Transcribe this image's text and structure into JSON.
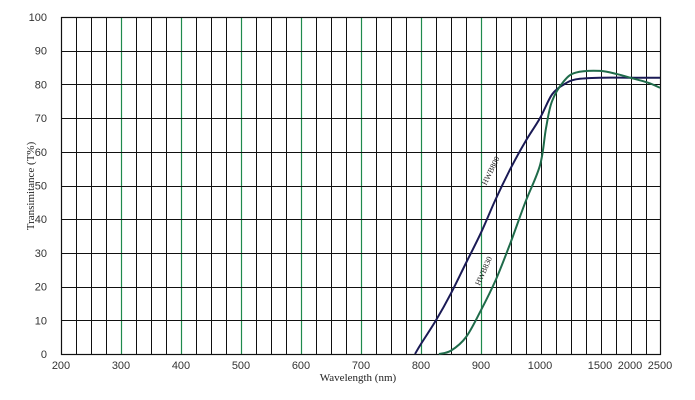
{
  "chart_data": {
    "type": "line",
    "title": "",
    "xlabel": "Wavelength (nm)",
    "ylabel": "Transimitance (T%)",
    "ylim": [
      0,
      100
    ],
    "grid": true,
    "x_scale": "piecewise (200–900 nm linear, 900–2500 nm expanded)",
    "x_ticks": [
      "200",
      "300",
      "400",
      "500",
      "600",
      "700",
      "800",
      "900",
      "1000",
      "1500",
      "2000",
      "2500"
    ],
    "y_ticks": [
      "0",
      "10",
      "20",
      "30",
      "40",
      "50",
      "60",
      "70",
      "80",
      "90",
      "100"
    ],
    "colors": {
      "grid_black": "#111111",
      "grid_green": "#1f8a4c",
      "curve_navy": "#1a1a55",
      "curve_green": "#1f6b4a"
    },
    "series": [
      {
        "name": "HWB800",
        "color": "#1a1a55",
        "x": [
          790,
          800,
          825,
          850,
          875,
          900,
          925,
          950,
          975,
          1000,
          1100,
          1200,
          1300,
          1500,
          2000,
          2500
        ],
        "y": [
          0,
          3,
          10,
          18,
          27,
          36,
          46,
          55,
          63,
          70,
          77,
          80,
          81.5,
          82,
          82,
          82
        ]
      },
      {
        "name": "HWB830",
        "color": "#1f6b4a",
        "x": [
          830,
          850,
          875,
          900,
          925,
          950,
          975,
          1000,
          1050,
          1100,
          1200,
          1300,
          1500,
          1800,
          2000,
          2300,
          2500
        ],
        "y": [
          0,
          1,
          5,
          13,
          22,
          33,
          45,
          56,
          67,
          75,
          81,
          83.5,
          84,
          83,
          82,
          80.5,
          79
        ]
      }
    ]
  }
}
